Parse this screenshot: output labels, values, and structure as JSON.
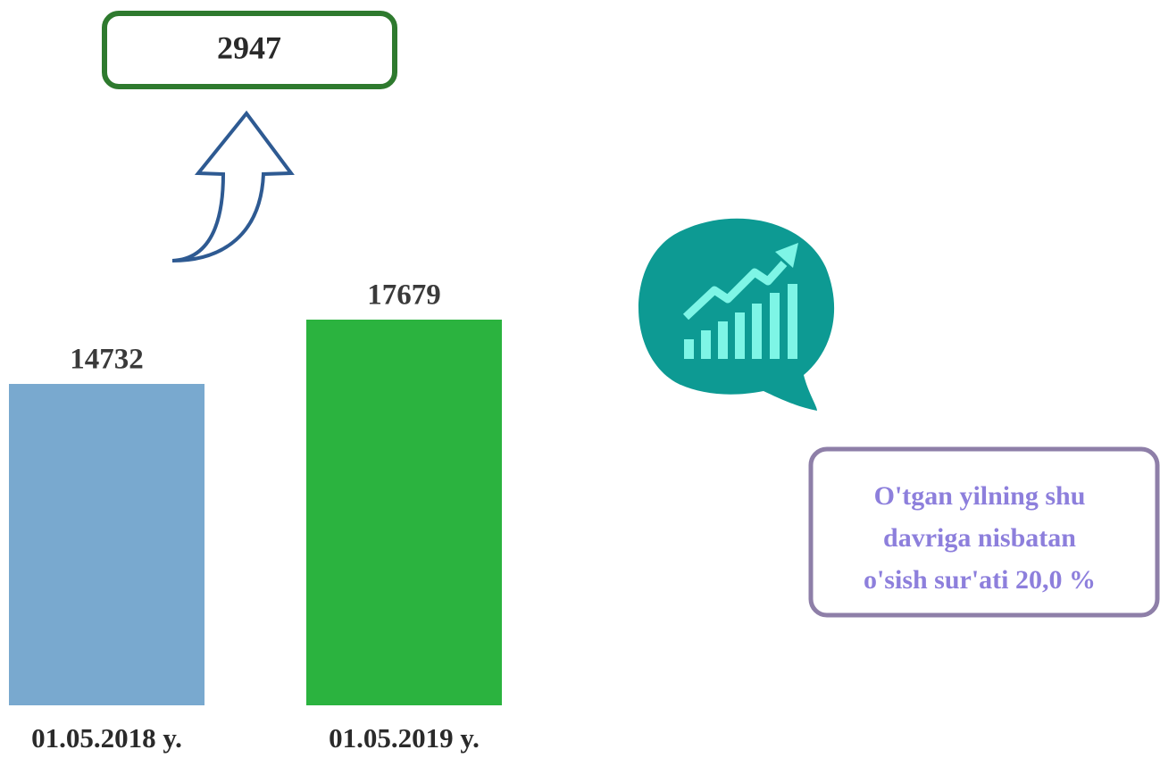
{
  "chart_data": {
    "type": "bar",
    "categories": [
      "01.05.2018 y.",
      "01.05.2019 y."
    ],
    "values": [
      14732,
      17679
    ],
    "colors": [
      "#79a9cf",
      "#2bb33f"
    ],
    "difference": 2947,
    "note": [
      "O'tgan yilning shu",
      "davriga nisbatan",
      "o'sish sur'ati 20,0 %"
    ]
  }
}
